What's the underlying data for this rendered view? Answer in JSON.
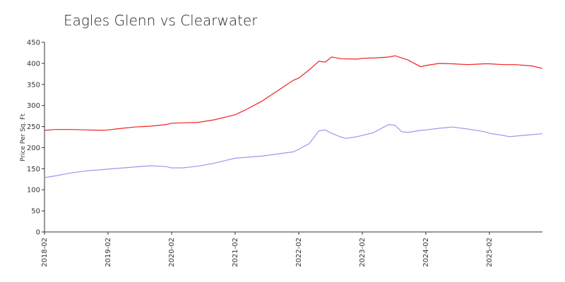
{
  "chart_data": {
    "type": "line",
    "title": "Eagles Glenn vs Clearwater",
    "xlabel": "",
    "ylabel": "Price Per Sq. Ft",
    "ylim": [
      0,
      450
    ],
    "yticks": [
      0,
      50,
      100,
      150,
      200,
      250,
      300,
      350,
      400,
      450
    ],
    "xrange": [
      2018.083,
      2025.917
    ],
    "xticks": [
      {
        "label": "2018-02",
        "value": 2018.083
      },
      {
        "label": "2019-02",
        "value": 2019.083
      },
      {
        "label": "2020-02",
        "value": 2020.083
      },
      {
        "label": "2021-02",
        "value": 2021.083
      },
      {
        "label": "2022-02",
        "value": 2022.083
      },
      {
        "label": "2023-02",
        "value": 2023.083
      },
      {
        "label": "2024-02",
        "value": 2024.083
      },
      {
        "label": "2025-02",
        "value": 2025.083
      }
    ],
    "grid": false,
    "series": [
      {
        "name": "Eagles Glenn",
        "color": "#ee2222",
        "points": [
          [
            2018.083,
            241
          ],
          [
            2018.25,
            243
          ],
          [
            2018.5,
            243
          ],
          [
            2018.75,
            242
          ],
          [
            2019.0,
            241
          ],
          [
            2019.083,
            242
          ],
          [
            2019.25,
            245
          ],
          [
            2019.5,
            249
          ],
          [
            2019.75,
            251
          ],
          [
            2020.0,
            255
          ],
          [
            2020.083,
            258
          ],
          [
            2020.25,
            259
          ],
          [
            2020.5,
            260
          ],
          [
            2020.75,
            266
          ],
          [
            2021.0,
            275
          ],
          [
            2021.083,
            278
          ],
          [
            2021.25,
            290
          ],
          [
            2021.5,
            310
          ],
          [
            2021.75,
            335
          ],
          [
            2022.0,
            360
          ],
          [
            2022.083,
            365
          ],
          [
            2022.25,
            385
          ],
          [
            2022.4,
            405
          ],
          [
            2022.5,
            403
          ],
          [
            2022.6,
            415
          ],
          [
            2022.75,
            411
          ],
          [
            2023.0,
            410
          ],
          [
            2023.083,
            412
          ],
          [
            2023.3,
            413
          ],
          [
            2023.5,
            415
          ],
          [
            2023.6,
            418
          ],
          [
            2023.8,
            408
          ],
          [
            2024.0,
            392
          ],
          [
            2024.083,
            395
          ],
          [
            2024.3,
            400
          ],
          [
            2024.5,
            399
          ],
          [
            2024.75,
            397
          ],
          [
            2025.0,
            399
          ],
          [
            2025.083,
            399
          ],
          [
            2025.3,
            397
          ],
          [
            2025.5,
            397
          ],
          [
            2025.75,
            394
          ],
          [
            2025.917,
            388
          ]
        ]
      },
      {
        "name": "Clearwater",
        "color": "#9999ee",
        "points": [
          [
            2018.083,
            129
          ],
          [
            2018.25,
            133
          ],
          [
            2018.5,
            140
          ],
          [
            2018.75,
            145
          ],
          [
            2019.0,
            148
          ],
          [
            2019.083,
            149
          ],
          [
            2019.5,
            154
          ],
          [
            2019.75,
            157
          ],
          [
            2020.0,
            155
          ],
          [
            2020.083,
            152
          ],
          [
            2020.25,
            152
          ],
          [
            2020.5,
            156
          ],
          [
            2020.75,
            163
          ],
          [
            2021.0,
            172
          ],
          [
            2021.083,
            175
          ],
          [
            2021.5,
            180
          ],
          [
            2021.75,
            185
          ],
          [
            2022.0,
            190
          ],
          [
            2022.083,
            196
          ],
          [
            2022.25,
            210
          ],
          [
            2022.4,
            240
          ],
          [
            2022.5,
            242
          ],
          [
            2022.6,
            234
          ],
          [
            2022.75,
            225
          ],
          [
            2022.83,
            222
          ],
          [
            2023.0,
            226
          ],
          [
            2023.083,
            229
          ],
          [
            2023.25,
            235
          ],
          [
            2023.35,
            243
          ],
          [
            2023.5,
            255
          ],
          [
            2023.6,
            253
          ],
          [
            2023.7,
            238
          ],
          [
            2023.8,
            236
          ],
          [
            2024.0,
            241
          ],
          [
            2024.083,
            242
          ],
          [
            2024.3,
            246
          ],
          [
            2024.5,
            249
          ],
          [
            2024.75,
            244
          ],
          [
            2025.0,
            238
          ],
          [
            2025.083,
            234
          ],
          [
            2025.3,
            229
          ],
          [
            2025.4,
            226
          ],
          [
            2025.6,
            229
          ],
          [
            2025.917,
            233
          ]
        ]
      }
    ]
  }
}
